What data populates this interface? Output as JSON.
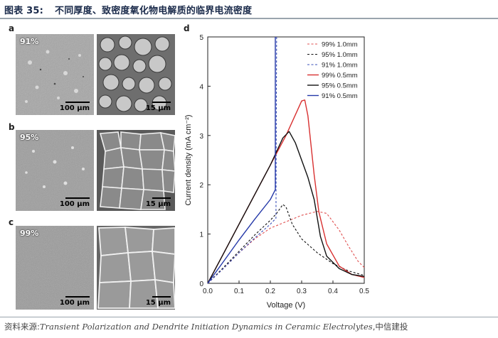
{
  "figure": {
    "number": "图表 35:",
    "title": "不同厚度、致密度氧化物电解质的临界电流密度"
  },
  "panels": [
    {
      "letter": "a",
      "density": "91%",
      "scale_low": "100 µm",
      "scale_high": "15 µm"
    },
    {
      "letter": "b",
      "density": "95%",
      "scale_low": "100 µm",
      "scale_high": "15 µm"
    },
    {
      "letter": "c",
      "density": "99%",
      "scale_low": "100 µm",
      "scale_high": "15 µm"
    }
  ],
  "chart_panel_letter": "d",
  "source": {
    "prefix": "资料来源:",
    "citation": "Transient Polarization and Dendrite Initiation Dynamics in Ceramic Electrolytes",
    "suffix": ",中信建投"
  },
  "chart_data": {
    "type": "line",
    "xlabel": "Voltage (V)",
    "ylabel": "Current density (mA cm⁻²)",
    "xlim": [
      0,
      0.5
    ],
    "ylim": [
      0,
      5
    ],
    "xticks": [
      "0.0",
      "0.1",
      "0.2",
      "0.3",
      "0.4",
      "0.5"
    ],
    "yticks": [
      "0",
      "1",
      "2",
      "3",
      "4",
      "5"
    ],
    "legend_position": "top-right",
    "series": [
      {
        "name": "99% 1.0mm",
        "color": "#e05050",
        "dash": true,
        "points": [
          [
            0,
            0
          ],
          [
            0.05,
            0.3
          ],
          [
            0.1,
            0.62
          ],
          [
            0.15,
            0.9
          ],
          [
            0.2,
            1.12
          ],
          [
            0.25,
            1.25
          ],
          [
            0.3,
            1.38
          ],
          [
            0.35,
            1.46
          ],
          [
            0.38,
            1.42
          ],
          [
            0.42,
            1.08
          ],
          [
            0.45,
            0.75
          ],
          [
            0.48,
            0.45
          ],
          [
            0.5,
            0.32
          ]
        ]
      },
      {
        "name": "95% 1.0mm",
        "color": "#111111",
        "dash": true,
        "points": [
          [
            0,
            0
          ],
          [
            0.05,
            0.32
          ],
          [
            0.1,
            0.65
          ],
          [
            0.15,
            0.98
          ],
          [
            0.2,
            1.28
          ],
          [
            0.22,
            1.42
          ],
          [
            0.24,
            1.6
          ],
          [
            0.25,
            1.55
          ],
          [
            0.27,
            1.2
          ],
          [
            0.3,
            0.9
          ],
          [
            0.35,
            0.62
          ],
          [
            0.4,
            0.4
          ],
          [
            0.45,
            0.25
          ],
          [
            0.5,
            0.16
          ]
        ]
      },
      {
        "name": "91% 1.0mm",
        "color": "#3a50b8",
        "dash": true,
        "points": [
          [
            0,
            0
          ],
          [
            0.05,
            0.3
          ],
          [
            0.1,
            0.62
          ],
          [
            0.15,
            0.92
          ],
          [
            0.2,
            1.2
          ],
          [
            0.218,
            1.32
          ],
          [
            0.22,
            5
          ]
        ]
      },
      {
        "name": "99% 0.5mm",
        "color": "#d83030",
        "dash": false,
        "points": [
          [
            0,
            0
          ],
          [
            0.05,
            0.6
          ],
          [
            0.1,
            1.2
          ],
          [
            0.15,
            1.8
          ],
          [
            0.2,
            2.4
          ],
          [
            0.25,
            3.0
          ],
          [
            0.28,
            3.42
          ],
          [
            0.3,
            3.7
          ],
          [
            0.31,
            3.72
          ],
          [
            0.32,
            3.4
          ],
          [
            0.34,
            2.2
          ],
          [
            0.355,
            1.45
          ],
          [
            0.38,
            0.8
          ],
          [
            0.42,
            0.35
          ],
          [
            0.46,
            0.18
          ],
          [
            0.5,
            0.12
          ]
        ]
      },
      {
        "name": "95% 0.5mm",
        "color": "#111111",
        "dash": false,
        "points": [
          [
            0,
            0
          ],
          [
            0.05,
            0.6
          ],
          [
            0.1,
            1.2
          ],
          [
            0.15,
            1.8
          ],
          [
            0.2,
            2.4
          ],
          [
            0.24,
            2.95
          ],
          [
            0.26,
            3.08
          ],
          [
            0.28,
            2.85
          ],
          [
            0.3,
            2.5
          ],
          [
            0.32,
            2.15
          ],
          [
            0.34,
            1.7
          ],
          [
            0.36,
            0.95
          ],
          [
            0.38,
            0.55
          ],
          [
            0.42,
            0.3
          ],
          [
            0.46,
            0.18
          ],
          [
            0.5,
            0.14
          ]
        ]
      },
      {
        "name": "91% 0.5mm",
        "color": "#2438a8",
        "dash": false,
        "points": [
          [
            0,
            0
          ],
          [
            0.05,
            0.44
          ],
          [
            0.1,
            0.88
          ],
          [
            0.15,
            1.3
          ],
          [
            0.2,
            1.7
          ],
          [
            0.216,
            1.9
          ],
          [
            0.216,
            5
          ]
        ]
      }
    ]
  }
}
